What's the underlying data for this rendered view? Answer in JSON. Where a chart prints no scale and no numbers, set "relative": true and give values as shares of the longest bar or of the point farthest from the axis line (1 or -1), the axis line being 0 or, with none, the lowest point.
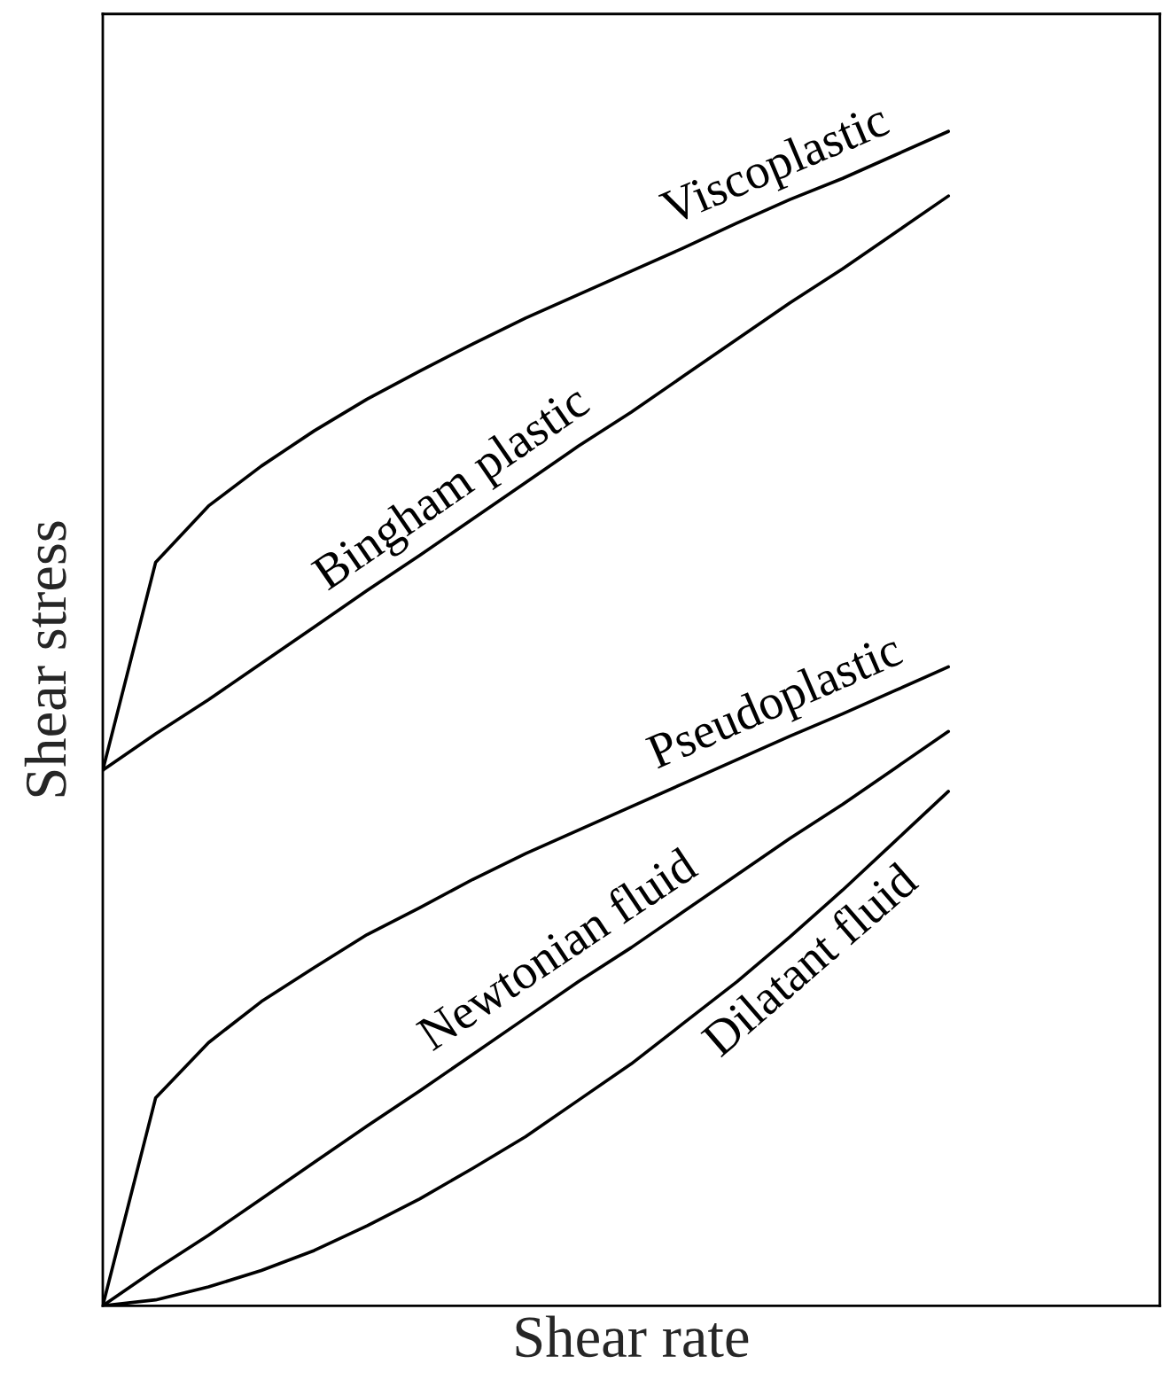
{
  "chart_data": {
    "type": "line",
    "relative": true,
    "xlabel": "Shear rate",
    "ylabel": "Shear stress",
    "legend": false,
    "categories": [
      null,
      null,
      null,
      null,
      null,
      null,
      null,
      null,
      null,
      null,
      null,
      null,
      null,
      null,
      null,
      null,
      null
    ],
    "series": [
      {
        "name": "Viscoplastic",
        "color": "#000000",
        "values": [
          0.456,
          0.633,
          0.681,
          0.715,
          0.745,
          0.772,
          0.796,
          0.819,
          0.841,
          0.861,
          0.881,
          0.901,
          0.922,
          0.942,
          0.96,
          0.98,
          1.0
        ]
      },
      {
        "name": "Bingham plastic",
        "color": "#000000",
        "values": [
          0.456,
          0.487,
          0.516,
          0.547,
          0.578,
          0.609,
          0.639,
          0.67,
          0.701,
          0.732,
          0.761,
          0.792,
          0.823,
          0.854,
          0.883,
          0.914,
          0.945
        ]
      },
      {
        "name": "Pseudoplastic",
        "color": "#000000",
        "values": [
          0.0,
          0.177,
          0.224,
          0.259,
          0.288,
          0.316,
          0.339,
          0.363,
          0.385,
          0.405,
          0.425,
          0.445,
          0.465,
          0.485,
          0.504,
          0.524,
          0.544
        ]
      },
      {
        "name": "Newtonian fluid",
        "color": "#000000",
        "values": [
          0.0,
          0.031,
          0.06,
          0.091,
          0.122,
          0.153,
          0.183,
          0.214,
          0.245,
          0.276,
          0.305,
          0.336,
          0.367,
          0.398,
          0.427,
          0.458,
          0.489
        ]
      },
      {
        "name": "Dilatant fluid",
        "color": "#000000",
        "values": [
          0.0,
          0.005,
          0.016,
          0.03,
          0.047,
          0.068,
          0.091,
          0.117,
          0.144,
          0.175,
          0.206,
          0.241,
          0.276,
          0.314,
          0.354,
          0.396,
          0.438
        ]
      }
    ]
  }
}
